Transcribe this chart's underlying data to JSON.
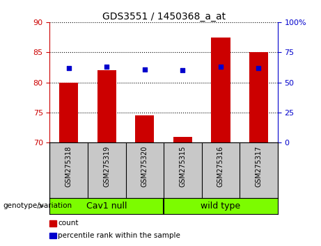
{
  "title": "GDS3551 / 1450368_a_at",
  "categories": [
    "GSM275318",
    "GSM275319",
    "GSM275320",
    "GSM275315",
    "GSM275316",
    "GSM275317"
  ],
  "red_values": [
    80.0,
    82.0,
    74.5,
    71.0,
    87.5,
    85.0
  ],
  "blue_values": [
    62.0,
    63.0,
    60.5,
    60.0,
    63.0,
    62.0
  ],
  "ylim_left": [
    70,
    90
  ],
  "ylim_right": [
    0,
    100
  ],
  "yticks_left": [
    70,
    75,
    80,
    85,
    90
  ],
  "yticks_right": [
    0,
    25,
    50,
    75,
    100
  ],
  "ytick_labels_right": [
    "0",
    "25",
    "50",
    "75",
    "100%"
  ],
  "group1_label": "Cav1 null",
  "group2_label": "wild type",
  "group1_indices": [
    0,
    1,
    2
  ],
  "group2_indices": [
    3,
    4,
    5
  ],
  "genotype_label": "genotype/variation",
  "legend_count": "count",
  "legend_percentile": "percentile rank within the sample",
  "bar_color": "#cc0000",
  "dot_color": "#0000cc",
  "bg_labels": "#c8c8c8",
  "bg_green": "#7CFC00",
  "bar_width": 0.5,
  "title_fontsize": 10,
  "tick_fontsize": 8,
  "label_fontsize": 7,
  "group_fontsize": 9
}
